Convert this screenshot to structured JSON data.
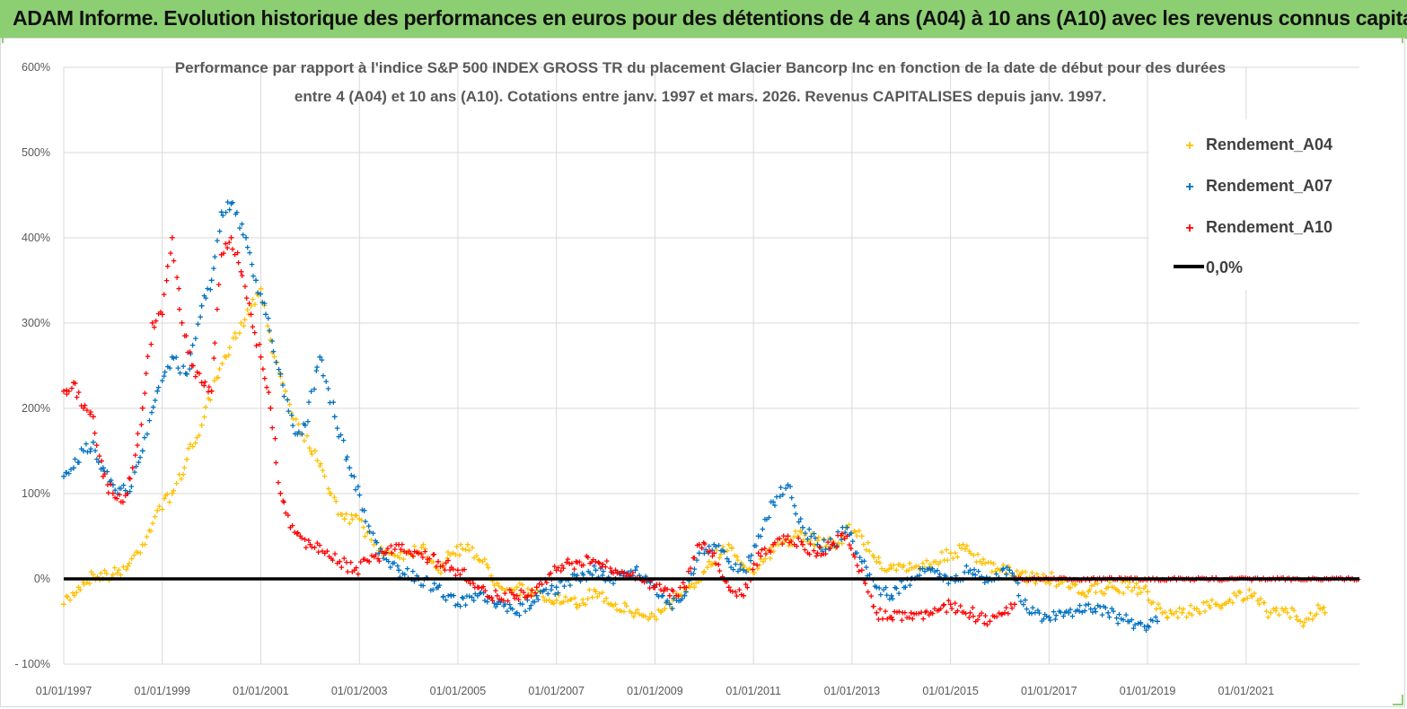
{
  "banner": {
    "title": "ADAM Informe. Evolution historique des performances en euros pour des détentions de 4 ans (A04) à 10 ans (A10) avec les revenus connus capitalisés"
  },
  "colors": {
    "banner_bg": "#8ccf72",
    "A04": "#ffc000",
    "A07": "#0070c0",
    "A10": "#ff0000",
    "zero": "#000000",
    "grid": "#d9d9d9"
  },
  "chart_data": {
    "type": "scatter",
    "title_lines": [
      "Performance par rapport à l'indice S&P 500 INDEX GROSS TR  du placement Glacier Bancorp Inc en fonction de la date de début pour des durées",
      "entre 4 (A04) et 10 ans (A10). Cotations entre janv. 1997 et mars. 2026. Revenus CAPITALISES depuis janv. 1997."
    ],
    "xlabel": "",
    "ylabel": "",
    "ylim": [
      -100,
      600
    ],
    "xlim": [
      1997.0,
      2023.3
    ],
    "y_ticks": [
      "- 100%",
      "0%",
      "100%",
      "200%",
      "300%",
      "400%",
      "500%",
      "600%"
    ],
    "y_tick_values": [
      -100,
      0,
      100,
      200,
      300,
      400,
      500,
      600
    ],
    "x_tick_labels": [
      "01/01/1997",
      "01/01/1999",
      "01/01/2001",
      "01/01/2003",
      "01/01/2005",
      "01/01/2007",
      "01/01/2009",
      "01/01/2011",
      "01/01/2013",
      "01/01/2015",
      "01/01/2017",
      "01/01/2019",
      "01/01/2021"
    ],
    "x_tick_values": [
      1997,
      1999,
      2001,
      2003,
      2005,
      2007,
      2009,
      2011,
      2013,
      2015,
      2017,
      2019,
      2021
    ],
    "grid": true,
    "legend_position": "top-right",
    "series": [
      {
        "name": "Rendement_A04",
        "key": "A04",
        "x": [
          1997.0,
          1997.3,
          1997.6,
          1998.0,
          1998.3,
          1998.6,
          1998.9,
          1999.2,
          1999.5,
          1999.8,
          2000.0,
          2000.3,
          2000.6,
          2000.8,
          2001.0,
          2001.2,
          2001.5,
          2001.8,
          2002.1,
          2002.4,
          2002.7,
          2003.0,
          2003.3,
          2003.6,
          2004.0,
          2004.3,
          2004.6,
          2004.9,
          2005.2,
          2005.5,
          2005.8,
          2006.2,
          2006.6,
          2007.0,
          2007.4,
          2007.8,
          2008.2,
          2008.6,
          2008.9,
          2009.2,
          2009.5,
          2009.8,
          2010.1,
          2010.5,
          2010.9,
          2011.2,
          2011.5,
          2011.9,
          2012.3,
          2012.7,
          2012.9,
          2013.2,
          2013.5,
          2013.9,
          2014.3,
          2014.7,
          2015.0,
          2015.3,
          2015.6,
          2016.0,
          2016.4,
          2016.8,
          2017.1,
          2017.4,
          2017.8,
          2018.2,
          2018.6,
          2019.0,
          2019.3,
          2019.7,
          2020.0,
          2020.4,
          2020.8,
          2021.1,
          2021.5,
          2021.8,
          2022.1,
          2022.5,
          2022.6
        ],
        "y": [
          -30,
          -10,
          5,
          5,
          15,
          40,
          80,
          100,
          140,
          180,
          220,
          260,
          300,
          320,
          340,
          280,
          220,
          170,
          150,
          100,
          70,
          70,
          40,
          30,
          30,
          40,
          10,
          30,
          40,
          20,
          -5,
          -10,
          -20,
          -25,
          -30,
          -15,
          -30,
          -40,
          -45,
          -35,
          -20,
          -10,
          20,
          40,
          10,
          20,
          40,
          50,
          45,
          40,
          60,
          50,
          20,
          10,
          15,
          20,
          30,
          35,
          20,
          10,
          5,
          0,
          0,
          -10,
          -15,
          -10,
          -10,
          -15,
          -40,
          -40,
          -35,
          -30,
          -20,
          -20,
          -40,
          -35,
          -50,
          -35,
          -40
        ]
      },
      {
        "name": "Rendement_A07",
        "key": "A07",
        "x": [
          1997.0,
          1997.2,
          1997.4,
          1997.6,
          1997.8,
          1998.0,
          1998.3,
          1998.6,
          1998.9,
          1999.2,
          1999.5,
          1999.8,
          2000.0,
          2000.2,
          2000.4,
          2000.7,
          2000.9,
          2001.1,
          2001.4,
          2001.7,
          2001.9,
          2002.2,
          2002.5,
          2002.8,
          2003.1,
          2003.4,
          2003.8,
          2004.2,
          2004.6,
          2005.0,
          2005.4,
          2005.8,
          2006.2,
          2006.6,
          2007.0,
          2007.4,
          2007.8,
          2008.2,
          2008.6,
          2009.0,
          2009.3,
          2009.6,
          2009.9,
          2010.2,
          2010.5,
          2010.8,
          2011.1,
          2011.4,
          2011.7,
          2012.0,
          2012.3,
          2012.6,
          2012.9,
          2013.2,
          2013.5,
          2013.8,
          2014.2,
          2014.6,
          2015.0,
          2015.4,
          2015.8,
          2016.2,
          2016.6,
          2017.0,
          2017.4,
          2017.8,
          2018.2,
          2018.6,
          2019.0,
          2019.2
        ],
        "y": [
          120,
          130,
          150,
          160,
          130,
          110,
          100,
          150,
          220,
          260,
          240,
          320,
          350,
          430,
          440,
          400,
          350,
          310,
          240,
          170,
          180,
          260,
          190,
          130,
          80,
          30,
          10,
          0,
          -10,
          -30,
          -20,
          -30,
          -40,
          -20,
          -10,
          0,
          10,
          0,
          10,
          -10,
          -30,
          -20,
          30,
          40,
          20,
          10,
          50,
          90,
          110,
          60,
          40,
          40,
          60,
          20,
          -10,
          -20,
          0,
          10,
          0,
          10,
          0,
          10,
          -40,
          -45,
          -40,
          -30,
          -40,
          -50,
          -55,
          -50
        ]
      },
      {
        "name": "Rendement_A10",
        "key": "A10",
        "x": [
          1997.0,
          1997.2,
          1997.4,
          1997.6,
          1997.8,
          1998.0,
          1998.2,
          1998.4,
          1998.6,
          1998.8,
          1999.0,
          1999.2,
          1999.4,
          1999.6,
          1999.8,
          2000.0,
          2000.2,
          2000.4,
          2000.6,
          2000.8,
          2001.0,
          2001.2,
          2001.4,
          2001.6,
          2001.8,
          2002.0,
          2002.3,
          2002.6,
          2002.9,
          2003.2,
          2003.5,
          2003.8,
          2004.2,
          2004.6,
          2005.0,
          2005.4,
          2005.8,
          2006.2,
          2006.6,
          2007.0,
          2007.4,
          2007.8,
          2008.2,
          2008.6,
          2009.0,
          2009.3,
          2009.6,
          2009.9,
          2010.2,
          2010.5,
          2010.8,
          2011.1,
          2011.4,
          2011.7,
          2012.0,
          2012.3,
          2012.6,
          2012.9,
          2013.2,
          2013.5,
          2013.8,
          2014.2,
          2014.6,
          2015.0,
          2015.4,
          2015.8,
          2016.1,
          2016.3
        ],
        "y": [
          220,
          230,
          200,
          190,
          120,
          100,
          90,
          130,
          200,
          300,
          310,
          400,
          300,
          250,
          230,
          220,
          380,
          400,
          360,
          310,
          260,
          200,
          100,
          60,
          50,
          40,
          30,
          20,
          10,
          20,
          30,
          40,
          30,
          20,
          10,
          -10,
          -20,
          -20,
          -10,
          10,
          20,
          20,
          10,
          0,
          -10,
          -20,
          -10,
          40,
          30,
          -10,
          -20,
          30,
          40,
          50,
          40,
          30,
          40,
          50,
          10,
          -40,
          -45,
          -40,
          -40,
          -30,
          -40,
          -50,
          -40,
          -30
        ]
      },
      {
        "name": "0,0%",
        "key": "zero",
        "x": [
          1997.0,
          2023.3
        ],
        "y": [
          0,
          0
        ]
      }
    ]
  }
}
